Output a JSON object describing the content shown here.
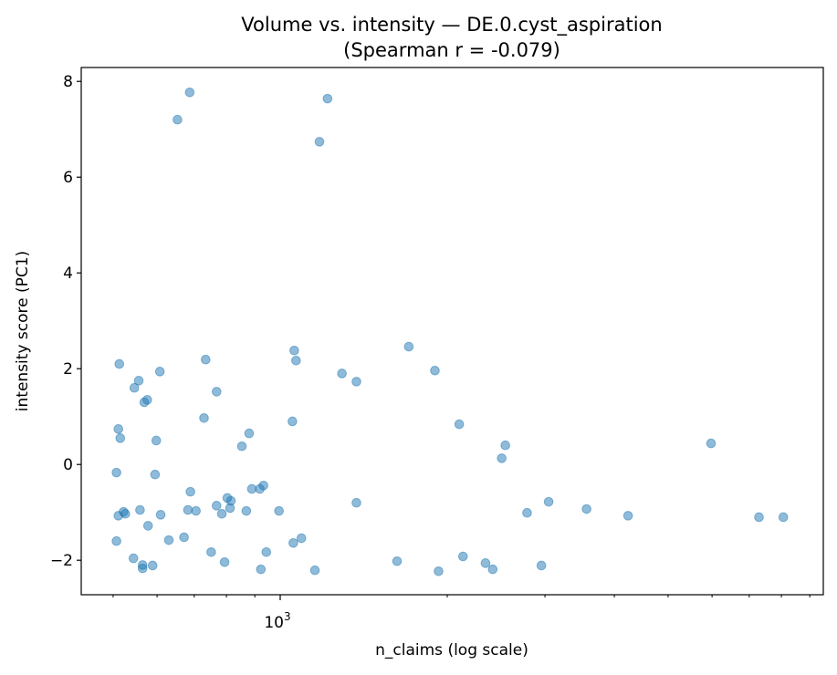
{
  "chart_data": {
    "type": "scatter",
    "title": "Volume vs. intensity — DE.0.cyst_aspiration",
    "subtitle": "(Spearman r = -0.079)",
    "xlabel": "n_claims (log scale)",
    "ylabel": "intensity score (PC1)",
    "xscale": "log",
    "xlim": [
      438,
      9520
    ],
    "ylim": [
      -2.72,
      8.29
    ],
    "x_major_ticks": [
      {
        "value": 1000,
        "label_base": "10",
        "label_exp": "3"
      }
    ],
    "x_minor_ticks": [
      500,
      600,
      700,
      800,
      900,
      2000,
      3000,
      4000,
      5000,
      6000,
      7000,
      8000,
      9000
    ],
    "y_ticks": [
      {
        "value": -2,
        "label": "−2"
      },
      {
        "value": 0,
        "label": "0"
      },
      {
        "value": 2,
        "label": "2"
      },
      {
        "value": 4,
        "label": "4"
      },
      {
        "value": 6,
        "label": "6"
      },
      {
        "value": 8,
        "label": "8"
      }
    ],
    "grid": false,
    "marker_color": "#1f77b4",
    "marker_alpha": 0.5,
    "points": [
      [
        653,
        7.2
      ],
      [
        687,
        7.77
      ],
      [
        1217,
        7.64
      ],
      [
        1177,
        6.74
      ],
      [
        513,
        2.1
      ],
      [
        607,
        1.94
      ],
      [
        556,
        1.75
      ],
      [
        546,
        1.6
      ],
      [
        576,
        1.35
      ],
      [
        569,
        1.3
      ],
      [
        734,
        2.19
      ],
      [
        768,
        1.52
      ],
      [
        729,
        0.97
      ],
      [
        511,
        0.74
      ],
      [
        515,
        0.55
      ],
      [
        598,
        0.5
      ],
      [
        507,
        -0.17
      ],
      [
        595,
        -0.21
      ],
      [
        879,
        0.65
      ],
      [
        853,
        0.38
      ],
      [
        1060,
        2.38
      ],
      [
        1068,
        2.17
      ],
      [
        1052,
        0.9
      ],
      [
        1292,
        1.9
      ],
      [
        1372,
        1.73
      ],
      [
        1705,
        2.46
      ],
      [
        1900,
        1.96
      ],
      [
        2102,
        0.84
      ],
      [
        2545,
        0.4
      ],
      [
        2507,
        0.13
      ],
      [
        5975,
        0.44
      ],
      [
        689,
        -0.57
      ],
      [
        889,
        -0.51
      ],
      [
        919,
        -0.51
      ],
      [
        933,
        -0.44
      ],
      [
        803,
        -0.7
      ],
      [
        815,
        -0.76
      ],
      [
        768,
        -0.86
      ],
      [
        682,
        -0.95
      ],
      [
        705,
        -0.97
      ],
      [
        785,
        -1.03
      ],
      [
        812,
        -0.91
      ],
      [
        869,
        -0.97
      ],
      [
        995,
        -0.97
      ],
      [
        1372,
        -0.8
      ],
      [
        522,
        -0.99
      ],
      [
        526,
        -1.03
      ],
      [
        511,
        -1.07
      ],
      [
        559,
        -0.95
      ],
      [
        609,
        -1.05
      ],
      [
        578,
        -1.28
      ],
      [
        630,
        -1.58
      ],
      [
        671,
        -1.52
      ],
      [
        507,
        -1.6
      ],
      [
        544,
        -1.96
      ],
      [
        565,
        -2.1
      ],
      [
        565,
        -2.17
      ],
      [
        589,
        -2.11
      ],
      [
        751,
        -1.83
      ],
      [
        794,
        -2.04
      ],
      [
        923,
        -2.19
      ],
      [
        944,
        -1.83
      ],
      [
        1056,
        -1.64
      ],
      [
        1092,
        -1.54
      ],
      [
        1155,
        -2.21
      ],
      [
        1624,
        -2.02
      ],
      [
        1929,
        -2.23
      ],
      [
        2135,
        -1.92
      ],
      [
        2344,
        -2.06
      ],
      [
        2415,
        -2.19
      ],
      [
        2956,
        -2.11
      ],
      [
        2785,
        -1.01
      ],
      [
        3046,
        -0.78
      ],
      [
        3565,
        -0.93
      ],
      [
        4235,
        -1.07
      ],
      [
        7290,
        -1.1
      ],
      [
        8065,
        -1.1
      ]
    ]
  }
}
